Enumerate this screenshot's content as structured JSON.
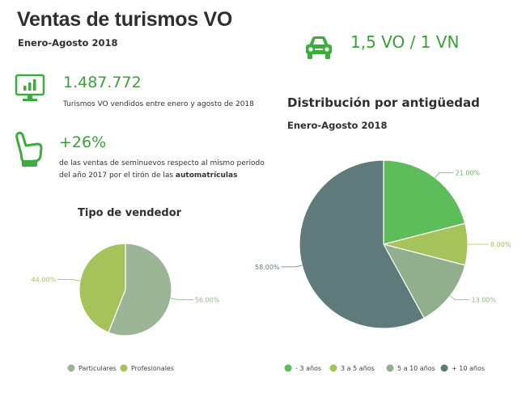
{
  "header": {
    "title": "Ventas de turismos VO",
    "subtitle": "Enero-Agosto 2018",
    "ratio": "1,5 VO / 1 VN"
  },
  "stats": [
    {
      "value": "1.487.772",
      "desc": "Turismos VO vendidos entre enero y agosto de 2018",
      "icon": "monitor-chart-icon"
    },
    {
      "value": "+26%",
      "desc_1": "de las ventas de seminuevos respecto al mismo periodo",
      "desc_2": "del año 2017 por el tirón de las ",
      "desc_bold": "automatrículas",
      "icon": "thumbs-up-icon"
    }
  ],
  "icons": {
    "car": "car-icon"
  },
  "colors": {
    "accent": "#3aa03a",
    "icon_green": "#3cad3c"
  },
  "chart_data": [
    {
      "type": "pie",
      "title": "Tipo de vendedor",
      "categories": [
        "Particulares",
        "Profesionales"
      ],
      "values": [
        56.0,
        44.0
      ],
      "labels": [
        "56.00%",
        "44.00%"
      ],
      "colors": [
        "#9bb596",
        "#a6c25a"
      ],
      "legend": "bottom"
    },
    {
      "type": "pie",
      "title": "Distribución por antigüedad",
      "subtitle": "Enero-Agosto 2018",
      "categories": [
        "- 3 años",
        "3 a 5 años",
        "5 a 10 años",
        "+ 10 años"
      ],
      "values": [
        21.0,
        8.0,
        13.0,
        58.0
      ],
      "labels": [
        "21.00%",
        "8.00%",
        "13.00%",
        "58.00%"
      ],
      "colors": [
        "#5ebd5b",
        "#a6c25a",
        "#92af8d",
        "#5f7a7a"
      ],
      "legend": "bottom"
    }
  ]
}
